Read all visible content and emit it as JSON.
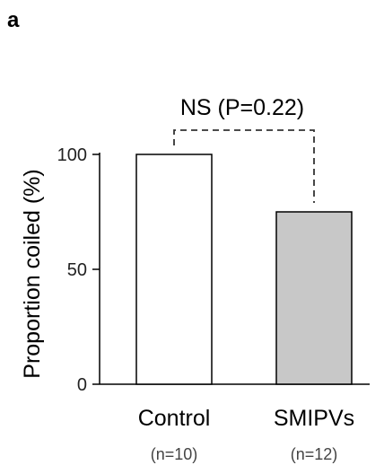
{
  "panel_label": "a",
  "chart_data": {
    "type": "bar",
    "categories": [
      "Control",
      "SMIPVs"
    ],
    "sample_sizes": [
      "(n=10)",
      "(n=12)"
    ],
    "values": [
      100,
      75
    ],
    "bar_colors": [
      "#ffffff",
      "#c8c8c8"
    ],
    "ylabel": "Proportion coiled (%)",
    "xlabel": "",
    "ylim": [
      0,
      100
    ],
    "yticks": [
      "0",
      "50",
      "100"
    ],
    "significance": {
      "text": "NS (P=0.22)",
      "between": [
        "Control",
        "SMIPVs"
      ],
      "style": "dashed"
    }
  }
}
